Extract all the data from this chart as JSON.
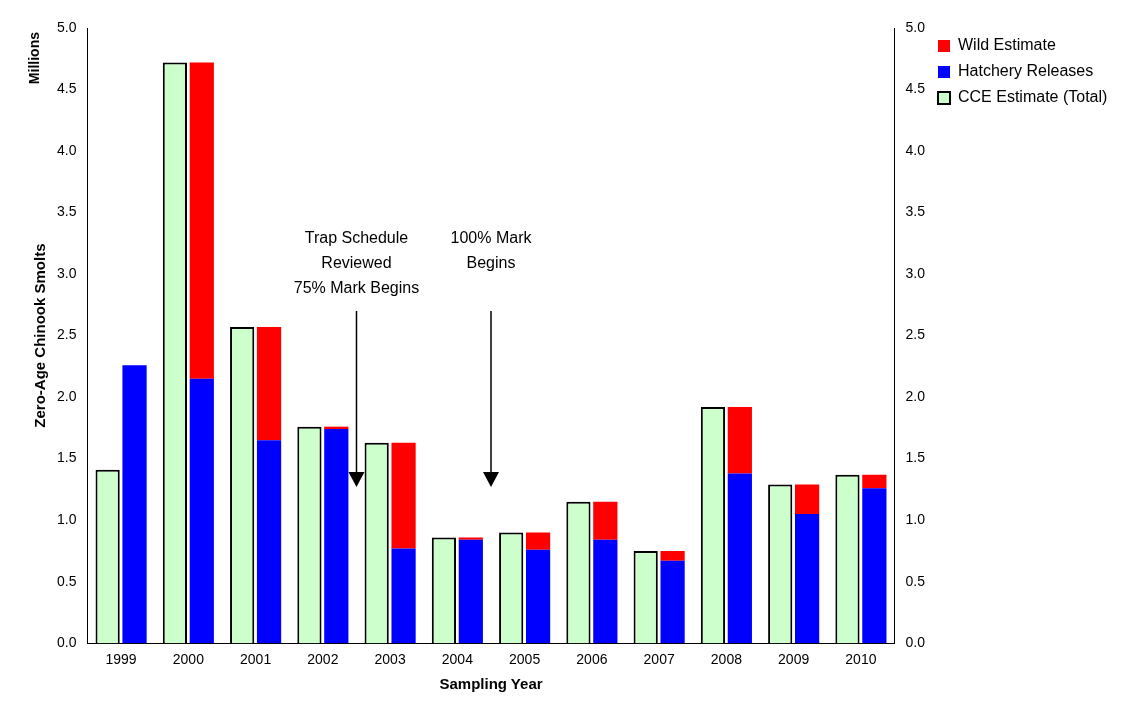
{
  "chart_data": {
    "type": "bar",
    "xlabel": "Sampling Year",
    "ylabel": "Zero-Age Chinook Smolts",
    "stacked": true,
    "categories": [
      "1999",
      "2000",
      "2001",
      "2002",
      "2003",
      "2004",
      "2005",
      "2006",
      "2007",
      "2008",
      "2009",
      "2010"
    ],
    "series": [
      {
        "name": "Hatchery Releases",
        "color": "#0000ff",
        "values": [
          2.26,
          2.15,
          1.65,
          1.74,
          0.77,
          0.84,
          0.76,
          0.84,
          0.67,
          1.38,
          1.05,
          1.26
        ]
      },
      {
        "name": "Wild Estimate",
        "color": "#ff0000",
        "values": [
          null,
          2.57,
          0.92,
          0.02,
          0.86,
          0.02,
          0.14,
          0.31,
          0.08,
          0.54,
          0.24,
          0.11
        ]
      },
      {
        "name": "CCE Estimate (Total)",
        "type": "bar",
        "axis": "y2",
        "color": "#ccffcc",
        "values": [
          1.41,
          4.72,
          2.57,
          1.76,
          1.63,
          0.86,
          0.9,
          1.15,
          0.75,
          1.92,
          1.29,
          1.37
        ]
      }
    ],
    "ylim": [
      0,
      5
    ],
    "yticks": [
      {
        "value": 0,
        "label": "0.0"
      },
      {
        "value": 0.5,
        "label": "0.5"
      },
      {
        "value": 1,
        "label": "1.0"
      },
      {
        "value": 1.5,
        "label": "1.5"
      },
      {
        "value": 2,
        "label": "2.0"
      },
      {
        "value": 2.5,
        "label": "2.5"
      },
      {
        "value": 3,
        "label": "3.0"
      },
      {
        "value": 3.5,
        "label": "3.5"
      },
      {
        "value": 4,
        "label": "4.0"
      },
      {
        "value": 4.5,
        "label": "4.5"
      },
      {
        "value": 5,
        "label": "5.0"
      }
    ],
    "y2lim": [
      0,
      5
    ],
    "y2ticks": [
      {
        "value": 0,
        "label": "0.0"
      },
      {
        "value": 0.5,
        "label": "0.5"
      },
      {
        "value": 1,
        "label": "1.0"
      },
      {
        "value": 1.5,
        "label": "1.5"
      },
      {
        "value": 2,
        "label": "2.0"
      },
      {
        "value": 2.5,
        "label": "2.5"
      },
      {
        "value": 3,
        "label": "3.0"
      },
      {
        "value": 3.5,
        "label": "3.5"
      },
      {
        "value": 4,
        "label": "4.0"
      },
      {
        "value": 4.5,
        "label": "4.5"
      },
      {
        "value": 5,
        "label": "5.0"
      }
    ],
    "grid": false,
    "legend": "top right",
    "annotations": [
      "Millions",
      "Trap Schedule\nReviewed\n75% Mark Begins",
      "100% Mark\nBegins"
    ]
  }
}
